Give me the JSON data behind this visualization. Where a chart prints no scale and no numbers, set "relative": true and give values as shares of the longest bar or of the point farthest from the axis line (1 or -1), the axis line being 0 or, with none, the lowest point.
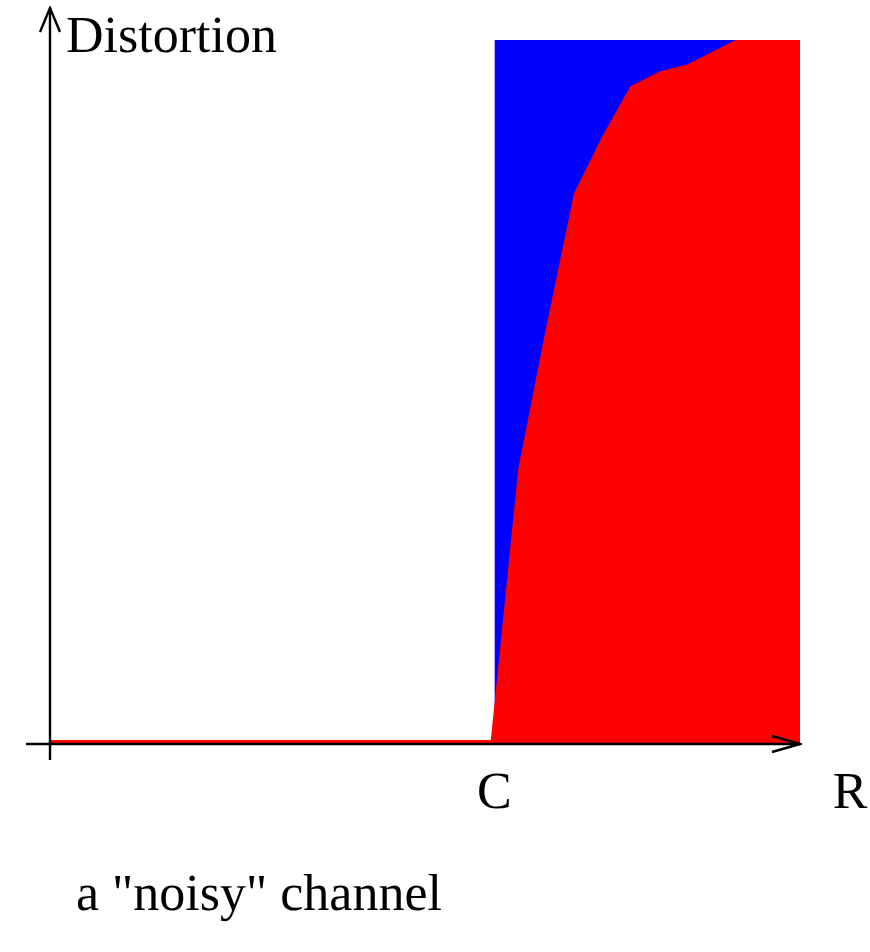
{
  "chart_data": {
    "type": "area",
    "relative": true,
    "stacked": true,
    "ylabel": "Distortion",
    "xlabel": "R",
    "categories": [
      null,
      null,
      null,
      null,
      null,
      null,
      null,
      null,
      null,
      null,
      null,
      null,
      null,
      null,
      null,
      null,
      null,
      null,
      null,
      null,
      null,
      null,
      null,
      null,
      null,
      null,
      null,
      null
    ],
    "series": [
      {
        "color": "#ff0000",
        "values": [
          0,
          0,
          0,
          0,
          0,
          0,
          0,
          0,
          0,
          0,
          0,
          0,
          0,
          0,
          0,
          0,
          0,
          0.39,
          0.59,
          0.78,
          0.86,
          0.93,
          0.95,
          0.96,
          0.98,
          1,
          1,
          1
        ]
      },
      {
        "color": "#0000ff",
        "values": [
          null,
          null,
          null,
          null,
          null,
          null,
          null,
          null,
          null,
          null,
          null,
          null,
          null,
          null,
          null,
          null,
          1,
          0.61,
          0.41,
          0.22,
          0.14,
          0.07,
          0.05,
          0.04,
          0.02,
          0,
          0,
          0
        ]
      }
    ],
    "legend": false,
    "annotations": [
      "C",
      "a \"noisy\" channel"
    ]
  }
}
